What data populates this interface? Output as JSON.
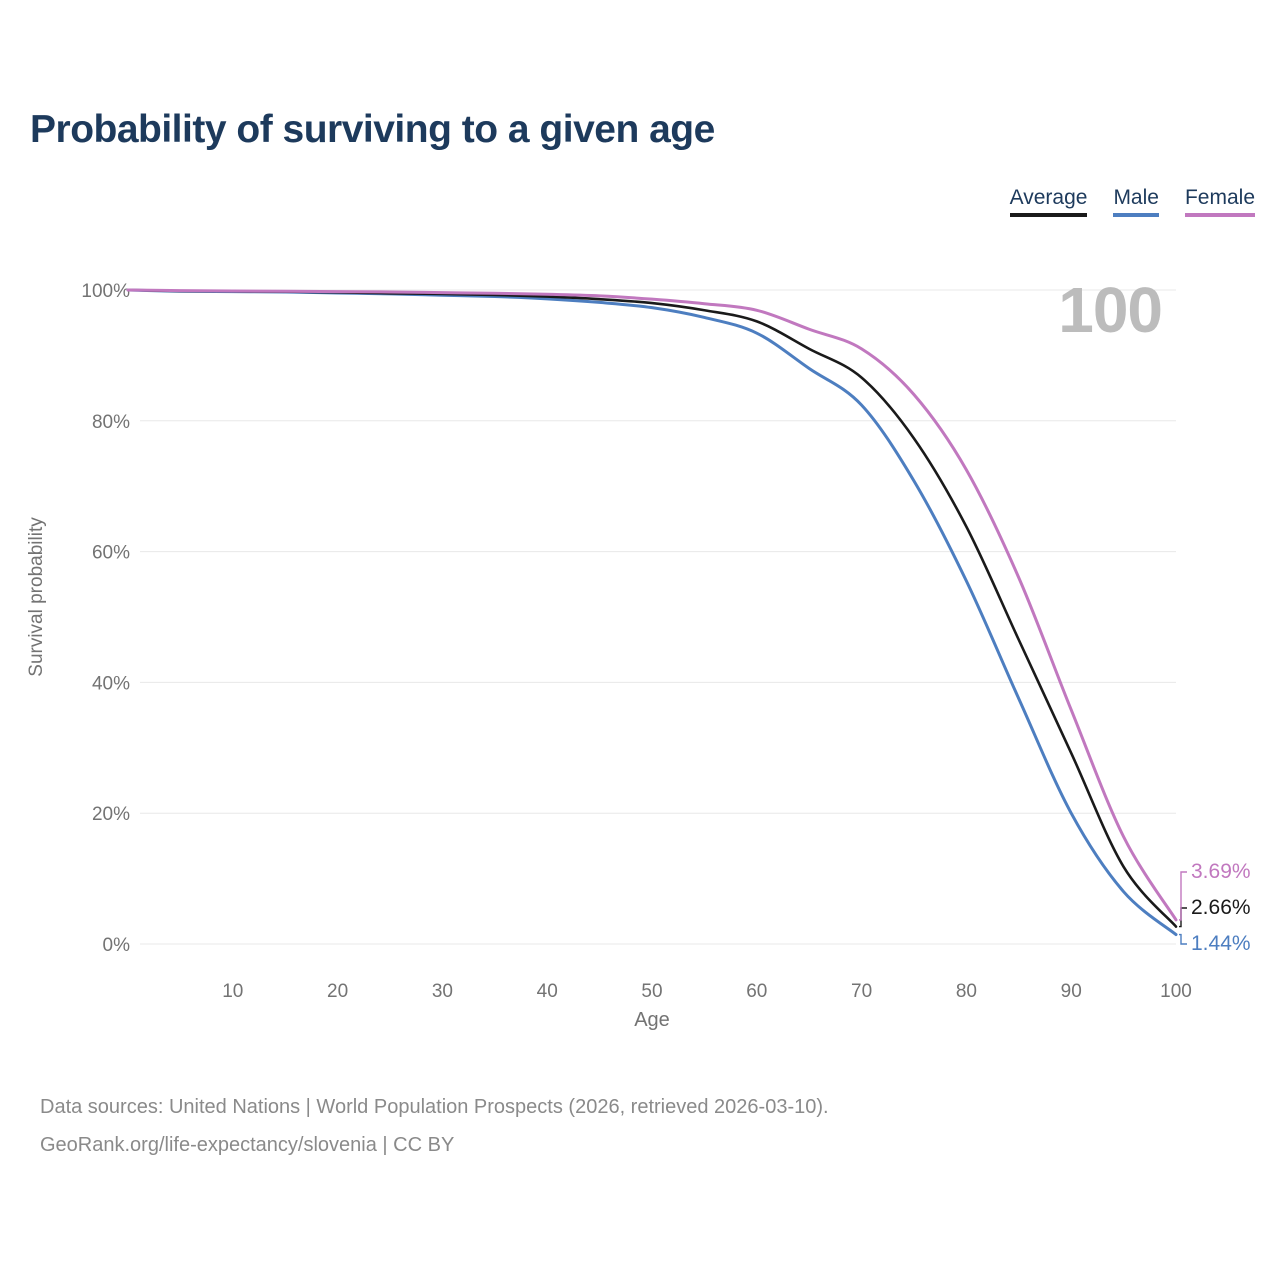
{
  "title": "Probability of surviving to a given age",
  "watermark_age": "100",
  "legend": {
    "items": [
      {
        "label": "Average",
        "color": "#1a1a1a"
      },
      {
        "label": "Male",
        "color": "#4d7ec0"
      },
      {
        "label": "Female",
        "color": "#c178bf"
      }
    ]
  },
  "chart_data": {
    "type": "line",
    "title": "Probability of surviving to a given age",
    "xlabel": "Age",
    "ylabel": "Survival probability",
    "xlim": [
      0,
      100
    ],
    "ylim": [
      0,
      100
    ],
    "grid": true,
    "legend_position": "top-right",
    "grid_color": "#e8e8e8",
    "axis_text_color": "#737373",
    "x_ticks": [
      10,
      20,
      30,
      40,
      50,
      60,
      70,
      80,
      90,
      100
    ],
    "y_tick_values": [
      0,
      20,
      40,
      60,
      80,
      100
    ],
    "y_tick_labels": [
      "0%",
      "20%",
      "40%",
      "60%",
      "80%",
      "100%"
    ],
    "x": [
      0,
      5,
      10,
      15,
      20,
      25,
      30,
      35,
      40,
      45,
      50,
      55,
      60,
      65,
      70,
      75,
      80,
      85,
      90,
      95,
      100
    ],
    "series": [
      {
        "name": "Average",
        "color": "#1a1a1a",
        "end_label": "2.66%",
        "end_value": 2.66,
        "values": [
          100,
          99.85,
          99.8,
          99.75,
          99.65,
          99.5,
          99.4,
          99.25,
          99.0,
          98.6,
          98.0,
          96.9,
          95.2,
          91.0,
          86.6,
          77.3,
          63.8,
          46.5,
          29.2,
          11.8,
          2.66
        ]
      },
      {
        "name": "Male",
        "color": "#4d7ec0",
        "end_label": "1.44%",
        "end_value": 1.44,
        "values": [
          100,
          99.8,
          99.75,
          99.7,
          99.55,
          99.4,
          99.2,
          99.0,
          98.65,
          98.1,
          97.3,
          95.8,
          93.4,
          88.0,
          82.4,
          70.8,
          55.5,
          37.5,
          20.0,
          8.0,
          1.44
        ]
      },
      {
        "name": "Female",
        "color": "#c178bf",
        "end_label": "3.69%",
        "end_value": 3.69,
        "values": [
          100,
          99.9,
          99.85,
          99.8,
          99.75,
          99.7,
          99.6,
          99.5,
          99.35,
          99.1,
          98.6,
          97.9,
          96.9,
          94.0,
          91.0,
          84.0,
          72.5,
          56.0,
          35.8,
          16.4,
          3.69
        ]
      }
    ]
  },
  "footer": {
    "line1": "Data sources: United Nations | World Population Prospects (2026, retrieved 2026-03-10).",
    "line2": "GeoRank.org/life-expectancy/slovenia | CC BY"
  }
}
